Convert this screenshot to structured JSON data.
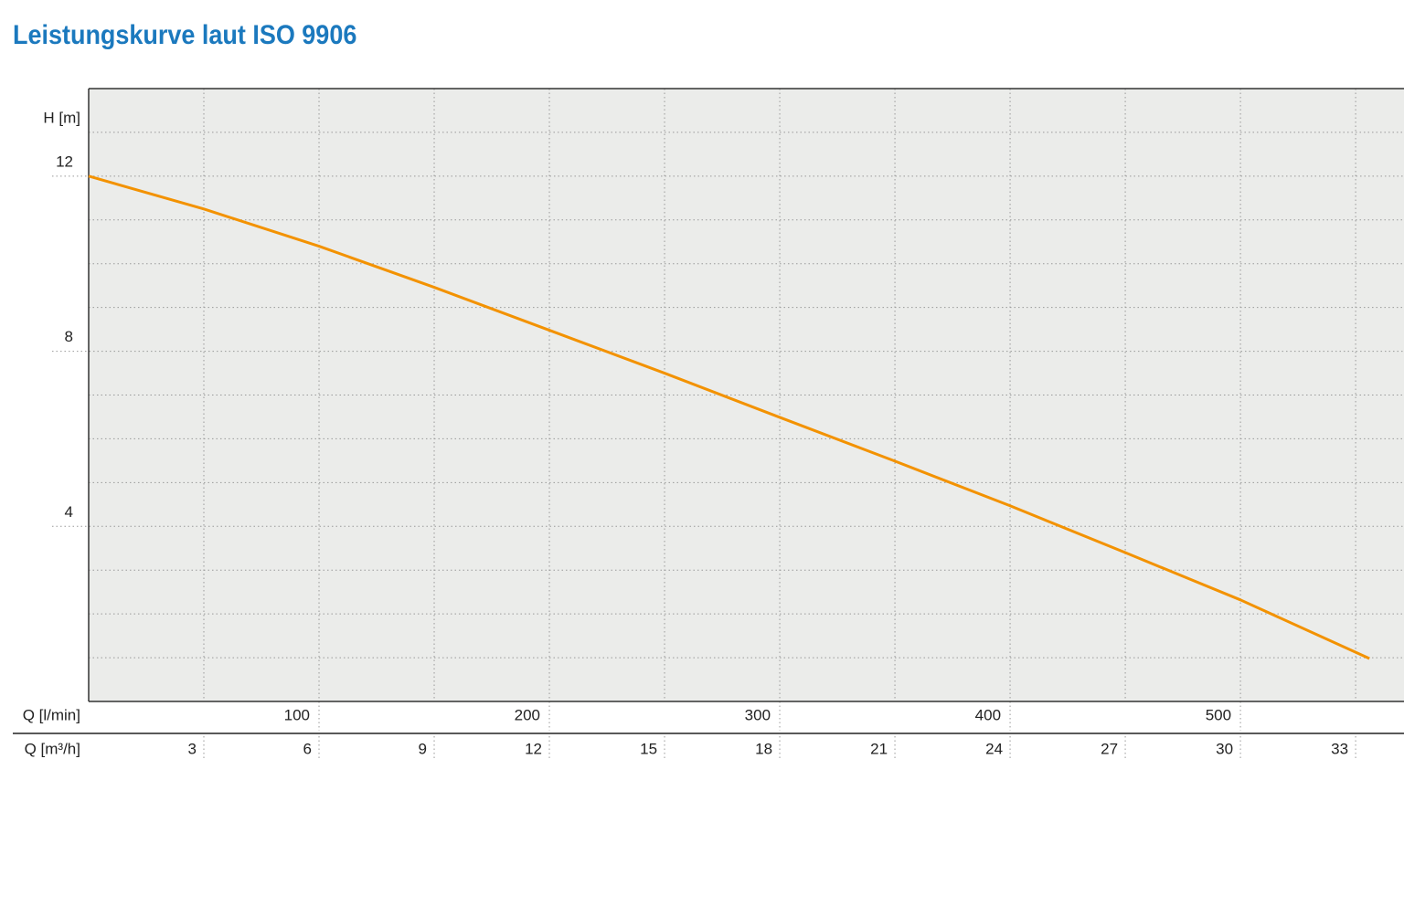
{
  "chart_data": {
    "type": "line",
    "title": "Leistungskurve laut ISO 9906",
    "y_label": "H [m]",
    "x_label": "Q [l/min]",
    "x2_label": "Q [m³/h]",
    "xlim": [
      0,
      571
    ],
    "xticks": [
      100,
      200,
      300,
      400,
      500
    ],
    "x2lim": [
      0,
      34.26
    ],
    "x2ticks": [
      3,
      6,
      9,
      12,
      15,
      18,
      21,
      24,
      27,
      30,
      33
    ],
    "ylim": [
      0,
      14
    ],
    "yticks": [
      4,
      8,
      12
    ],
    "y_grid": [
      1,
      2,
      3,
      5,
      6,
      7,
      9,
      10,
      11,
      13
    ],
    "grid": true,
    "x": [
      0,
      50,
      100,
      150,
      200,
      250,
      300,
      350,
      400,
      450,
      500,
      556
    ],
    "series": [
      {
        "name": null,
        "color": "#f39200",
        "values": [
          12,
          11.25,
          10.4,
          9.46,
          8.48,
          7.5,
          6.49,
          5.49,
          4.47,
          3.4,
          2.32,
          0.98
        ]
      }
    ]
  }
}
